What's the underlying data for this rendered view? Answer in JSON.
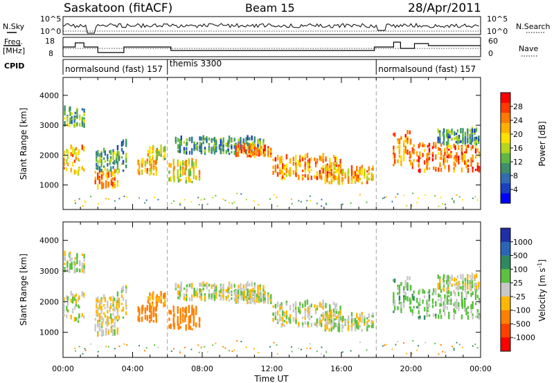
{
  "header": {
    "station": "Saskatoon (fitACF)",
    "beam": "Beam 15",
    "date": "28/Apr/2011"
  },
  "noise_panel": {
    "left_label": "N.Sky",
    "right_label": "N.Search",
    "left_ticks": [
      "10^5",
      "10^0"
    ],
    "right_ticks": [
      "10^5",
      "10^0"
    ]
  },
  "freq_panel": {
    "left_label_line1": "Freq.",
    "left_label_line2": "[MHz]",
    "right_label": "Nave",
    "left_ticks": [
      "18",
      "8"
    ],
    "right_ticks": [
      "60",
      "0"
    ]
  },
  "cpid": {
    "label": "CPID",
    "segments": [
      {
        "name": "normalsound (fast) 157",
        "start_hour": 0.0
      },
      {
        "name": "themis 3300",
        "start_hour": 6.0
      },
      {
        "name": "normalsound (fast) 157",
        "start_hour": 18.0
      }
    ]
  },
  "panels": {
    "y_label": "Slant Range [km]",
    "y_ticks": [
      "1000",
      "2000",
      "3000",
      "4000"
    ],
    "x_label": "Time UT",
    "x_ticks": [
      "00:00",
      "04:00",
      "08:00",
      "12:00",
      "16:00",
      "20:00",
      "00:00"
    ]
  },
  "power_colorbar": {
    "title": "Power [dB]",
    "ticks": [
      "4",
      "8",
      "12",
      "16",
      "20",
      "24",
      "28"
    ],
    "colors": [
      "#0000ff",
      "#1a3fbf",
      "#2f6db0",
      "#3c8f6a",
      "#5fb640",
      "#b5d51e",
      "#ffe000",
      "#ffb000",
      "#ff7a00",
      "#ff3a00",
      "#ff0000"
    ]
  },
  "velocity_colorbar": {
    "title": "Velocity [m s-1]",
    "title_base": "Velocity [m s",
    "title_exp": "-1",
    "title_close": "]",
    "ticks": [
      "1000",
      "500",
      "100",
      "25",
      "-25",
      "-100",
      "-500",
      "-1000"
    ],
    "colors": [
      "#1e2fa8",
      "#2a66b8",
      "#2e8a5e",
      "#5cc040",
      "#c8c8c8",
      "#ffb800",
      "#ff8000",
      "#ff4000",
      "#ff0000"
    ]
  },
  "chart_data": {
    "type": "heatmap",
    "x": {
      "label": "Time UT",
      "range_hours": [
        0,
        24
      ],
      "ticks": [
        "00:00",
        "04:00",
        "08:00",
        "12:00",
        "16:00",
        "20:00",
        "00:00"
      ]
    },
    "y": {
      "label": "Slant Range [km]",
      "range_km": [
        180,
        4600
      ],
      "ticks": [
        1000,
        2000,
        3000,
        4000
      ]
    },
    "grid": false,
    "cpid_boundaries_hours": [
      6.0,
      18.0
    ],
    "power_db_range": [
      0,
      30
    ],
    "velocity_range": [
      -1000,
      1000
    ],
    "scatter_regions": [
      {
        "t_start": 0.0,
        "t_end": 1.2,
        "range_low": 1300,
        "range_high": 2200,
        "power_db": 20,
        "velocity": 0
      },
      {
        "t_start": 0.0,
        "t_end": 1.2,
        "range_low": 2900,
        "range_high": 3500,
        "power_db": 12,
        "velocity": 0
      },
      {
        "t_start": 1.8,
        "t_end": 3.1,
        "range_low": 850,
        "range_high": 1400,
        "power_db": 22,
        "velocity": -20
      },
      {
        "t_start": 1.8,
        "t_end": 3.1,
        "range_low": 1400,
        "range_high": 2100,
        "power_db": 12,
        "velocity": -20
      },
      {
        "t_start": 3.0,
        "t_end": 3.6,
        "range_low": 1400,
        "range_high": 2400,
        "power_db": 10,
        "velocity": 0
      },
      {
        "t_start": 4.2,
        "t_end": 5.4,
        "range_low": 1300,
        "range_high": 1800,
        "power_db": 20,
        "velocity": -200
      },
      {
        "t_start": 4.8,
        "t_end": 5.9,
        "range_low": 1800,
        "range_high": 2200,
        "power_db": 16,
        "velocity": -100
      },
      {
        "t_start": 6.0,
        "t_end": 7.8,
        "range_low": 1050,
        "range_high": 1750,
        "power_db": 18,
        "velocity": -200
      },
      {
        "t_start": 6.4,
        "t_end": 11.5,
        "range_low": 2000,
        "range_high": 2500,
        "power_db": 10,
        "velocity": 0
      },
      {
        "t_start": 9.8,
        "t_end": 12.0,
        "range_low": 1900,
        "range_high": 2250,
        "power_db": 22,
        "velocity": 0
      },
      {
        "t_start": 12.0,
        "t_end": 16.0,
        "range_low": 1150,
        "range_high": 1900,
        "power_db": 22,
        "velocity": 0
      },
      {
        "t_start": 15.0,
        "t_end": 17.8,
        "range_low": 1000,
        "range_high": 1500,
        "power_db": 20,
        "velocity": 0
      },
      {
        "t_start": 18.9,
        "t_end": 20.0,
        "range_low": 1600,
        "range_high": 2700,
        "power_db": 22,
        "velocity": 50
      },
      {
        "t_start": 20.0,
        "t_end": 23.9,
        "range_low": 1400,
        "range_high": 2300,
        "power_db": 24,
        "velocity": 50
      },
      {
        "t_start": 21.5,
        "t_end": 23.9,
        "range_low": 2300,
        "range_high": 2800,
        "power_db": 10,
        "velocity": 0
      }
    ]
  }
}
